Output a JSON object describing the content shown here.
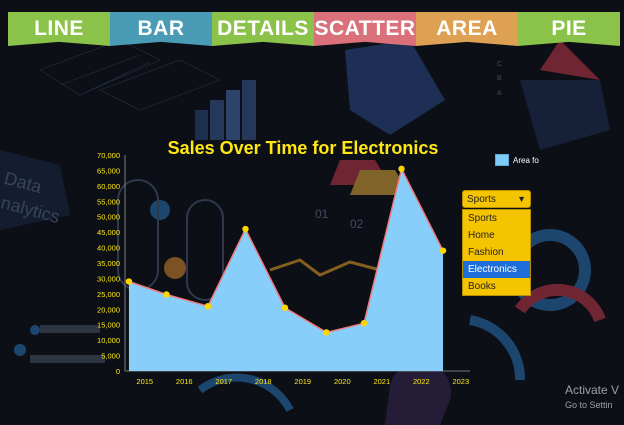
{
  "tabs": [
    {
      "label": "LINE",
      "color": "#8bc34a"
    },
    {
      "label": "BAR",
      "color": "#4a9bb5"
    },
    {
      "label": "DETAILS",
      "color": "#8bc34a"
    },
    {
      "label": "SCATTER",
      "color": "#d9707a"
    },
    {
      "label": "AREA",
      "color": "#dea052"
    },
    {
      "label": "PIE",
      "color": "#8bc34a"
    }
  ],
  "legend": {
    "label": "Area fo"
  },
  "dropdown": {
    "selected": "Sports",
    "options": [
      "Sports",
      "Home",
      "Fashion",
      "Electronics",
      "Books"
    ],
    "highlighted": "Electronics"
  },
  "watermark": {
    "line1": "Activate V",
    "line2": "Go to Settin"
  },
  "chart_data": {
    "type": "area",
    "title": "Sales Over Time for Electronics",
    "xlabel": "",
    "ylabel": "",
    "x_ticks": [
      "2015",
      "2016",
      "2017",
      "2018",
      "2019",
      "2020",
      "2021",
      "2022",
      "2023"
    ],
    "x": [
      2014.6,
      2015.55,
      2016.6,
      2017.55,
      2018.55,
      2019.6,
      2020.55,
      2021.5,
      2022.55
    ],
    "values": [
      29000,
      24800,
      21000,
      46000,
      20500,
      12500,
      15500,
      65500,
      39000
    ],
    "ylim": [
      0,
      70000
    ],
    "y_ticks": [
      0,
      5000,
      10000,
      15000,
      20000,
      25000,
      30000,
      35000,
      40000,
      45000,
      50000,
      55000,
      60000,
      65000,
      70000
    ],
    "fill_color": "#87cefa",
    "line_color": "#f07a7a",
    "point_color": "#ffd600",
    "title_color": "#ffe812",
    "tick_color": "#ffe812"
  }
}
